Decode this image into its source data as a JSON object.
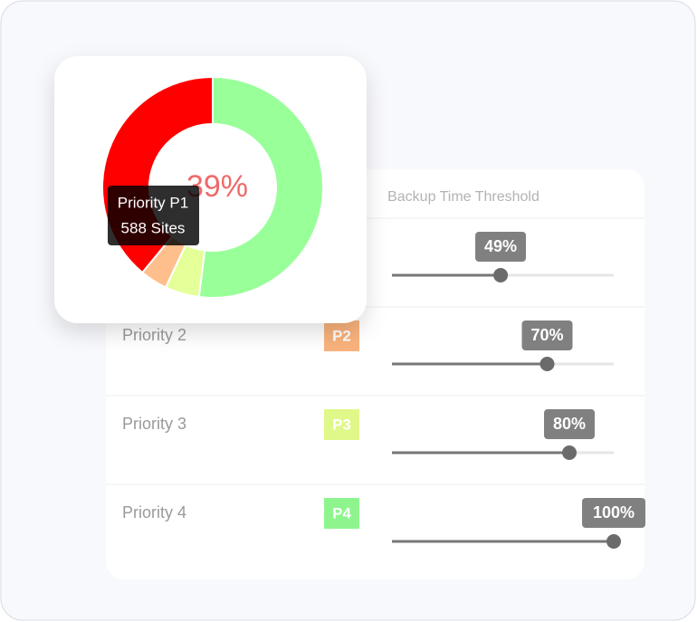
{
  "donut": {
    "center_label": "39%",
    "slices": [
      {
        "value": 52,
        "color": "#99ff99"
      },
      {
        "value": 5,
        "color": "#e5ff99"
      },
      {
        "value": 4,
        "color": "#ffbf8c"
      },
      {
        "value": 39,
        "color": "#ff0000"
      }
    ],
    "tooltip": {
      "title": "Priority P1",
      "detail": "588 Sites"
    }
  },
  "table": {
    "header": "Backup Time Threshold",
    "rows": [
      {
        "value": 49,
        "label": "49%"
      },
      {
        "priority": "Priority 2",
        "badge": "P2",
        "badge_color": "#f8b27c",
        "value": 70,
        "label": "70%"
      },
      {
        "priority": "Priority 3",
        "badge": "P3",
        "badge_color": "#e0f78a",
        "value": 80,
        "label": "80%"
      },
      {
        "priority": "Priority 4",
        "badge": "P4",
        "badge_color": "#8ef58e",
        "value": 100,
        "label": "100%"
      }
    ]
  }
}
